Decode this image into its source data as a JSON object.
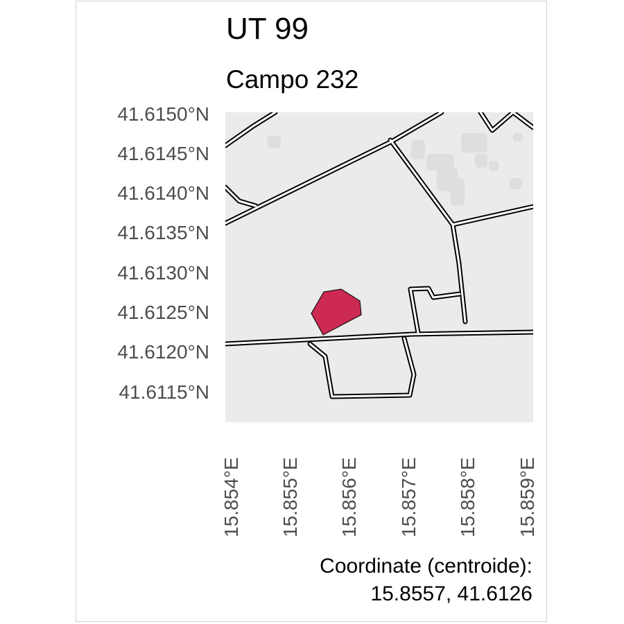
{
  "title": "UT 99",
  "subtitle": "Campo 232",
  "latitude_ticks": [
    "41.6150°N",
    "41.6145°N",
    "41.6140°N",
    "41.6135°N",
    "41.6130°N",
    "41.6125°N",
    "41.6120°N",
    "41.6115°N"
  ],
  "longitude_ticks": [
    "15.854°E",
    "15.855°E",
    "15.856°E",
    "15.857°E",
    "15.858°E",
    "15.859°E"
  ],
  "caption": {
    "line1": "Coordinate (centroide):",
    "line2": "15.8557, 41.6126"
  },
  "colors": {
    "parcel_fill": "#cc2a52",
    "map_background": "#ebebeb",
    "building_fill": "#dedede",
    "road_outline": "#000000"
  }
}
